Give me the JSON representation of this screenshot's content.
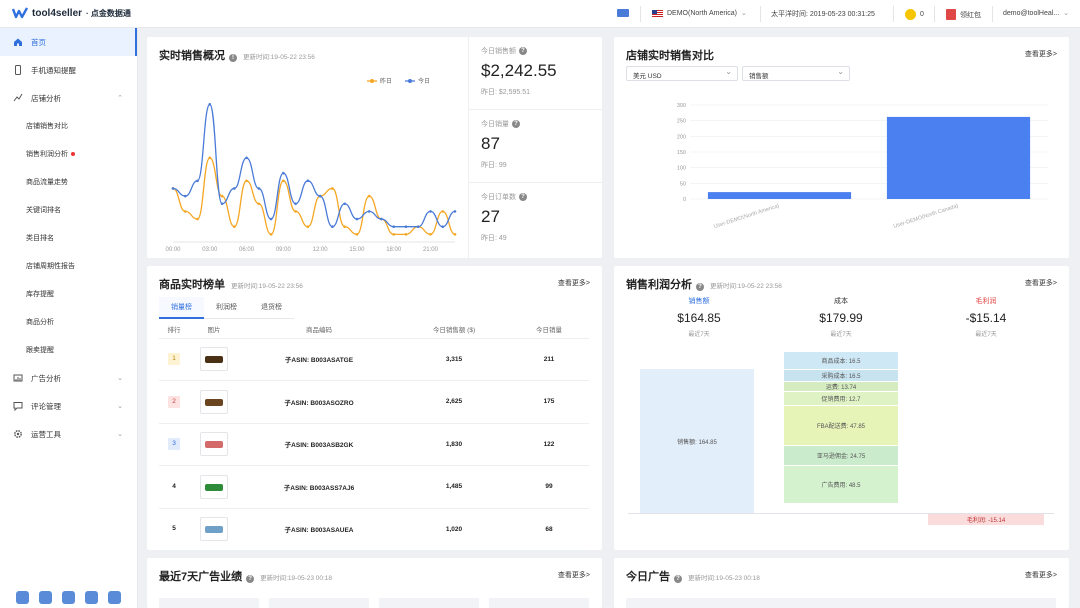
{
  "header": {
    "brand": "tool4seller",
    "brand_sub": "· 点金数据通",
    "store": "DEMO(North America)",
    "time_label": "太平洋时间: 2019-05-23 00:31:25",
    "coins": "0",
    "gift": "领红包",
    "user": "demo@toolHeal..."
  },
  "sidebar": {
    "items": [
      {
        "label": "首页",
        "icon": "home-icon"
      },
      {
        "label": "手机通知提醒",
        "icon": "phone-icon"
      },
      {
        "label": "店铺分析",
        "icon": "chart-icon"
      },
      {
        "label": "店铺销售对比"
      },
      {
        "label": "销售利润分析"
      },
      {
        "label": "商品流量走势"
      },
      {
        "label": "关键词排名"
      },
      {
        "label": "类目排名"
      },
      {
        "label": "店铺周期性报告"
      },
      {
        "label": "库存提醒"
      },
      {
        "label": "商品分析"
      },
      {
        "label": "跟卖提醒"
      },
      {
        "label": "广告分析",
        "icon": "ad-icon"
      },
      {
        "label": "评论管理",
        "icon": "comment-icon"
      },
      {
        "label": "运营工具",
        "icon": "gear-icon"
      }
    ]
  },
  "realtime": {
    "title": "实时销售概况",
    "updated": "更新时间:19-05-22 23:56",
    "legend": {
      "yesterday": "昨日",
      "today": "今日"
    },
    "stats": [
      {
        "label": "今日销售额",
        "value": "$2,242.55",
        "sub": "昨日: $2,595.51"
      },
      {
        "label": "今日销量",
        "value": "87",
        "sub": "昨日: 99"
      },
      {
        "label": "今日订单数",
        "value": "27",
        "sub": "昨日: 49"
      }
    ],
    "chart_data": {
      "type": "line",
      "x": [
        "00:00",
        "01:00",
        "02:00",
        "03:00",
        "04:00",
        "05:00",
        "06:00",
        "07:00",
        "08:00",
        "09:00",
        "10:00",
        "11:00",
        "12:00",
        "13:00",
        "14:00",
        "15:00",
        "16:00",
        "17:00",
        "18:00",
        "19:00",
        "20:00",
        "21:00",
        "22:00",
        "23:00"
      ],
      "x_ticks": [
        "00:00",
        "03:00",
        "06:00",
        "09:00",
        "12:00",
        "15:00",
        "18:00",
        "21:00"
      ],
      "series": [
        {
          "name": "昨日",
          "color": "#f5a623",
          "values": [
            3.5,
            2,
            1.5,
            5.5,
            3,
            1,
            4,
            2.5,
            0.5,
            4,
            2,
            1,
            3,
            3.5,
            1,
            0.5,
            3,
            1.5,
            0.5,
            0.5,
            1,
            0.5,
            2,
            0.5
          ]
        },
        {
          "name": "今日",
          "color": "#4a7bd8",
          "values": [
            3.5,
            3,
            4,
            9,
            2.5,
            3.5,
            5.5,
            3.5,
            1.5,
            4.5,
            2.5,
            4,
            3,
            1,
            2.5,
            1.5,
            2,
            1.5,
            1,
            1,
            1,
            2,
            1,
            2
          ]
        }
      ]
    }
  },
  "store_compare": {
    "title": "店铺实时销售对比",
    "more": "查看更多>",
    "currency": "美元 USD",
    "metric": "销售额",
    "chart_data": {
      "type": "bar",
      "categories": [
        "User-DEMO(North America)",
        "User-DEMO(North Canada)"
      ],
      "values": [
        22,
        262
      ],
      "ylim": [
        0,
        300
      ],
      "yticks": [
        0,
        50,
        100,
        150,
        200,
        250,
        300
      ]
    }
  },
  "ranking": {
    "title": "商品实时榜单",
    "updated": "更新时间:19-05-22 23:56",
    "more": "查看更多>",
    "tabs": [
      "销量榜",
      "利润榜",
      "退货榜"
    ],
    "columns": [
      "排行",
      "图片",
      "商品编码",
      "今日销售额 ($)",
      "今日销量"
    ],
    "rows": [
      {
        "rank": "1",
        "asin": "子ASIN: B003ASATGE",
        "sales": "3,315",
        "units": "211",
        "color": "#5a3a1c"
      },
      {
        "rank": "2",
        "asin": "子ASIN: B003ASOZRO",
        "sales": "2,625",
        "units": "175",
        "color": "#6b4420"
      },
      {
        "rank": "3",
        "asin": "子ASIN: B003ASB2GK",
        "sales": "1,830",
        "units": "122",
        "color": "#d46a6a"
      },
      {
        "rank": "4",
        "asin": "子ASIN: B003ASS7AJ6",
        "sales": "1,485",
        "units": "99",
        "color": "#2e8b3a"
      },
      {
        "rank": "5",
        "asin": "子ASIN: B003ASAUEA",
        "sales": "1,020",
        "units": "68",
        "color": "#6fa0c8"
      }
    ]
  },
  "profit": {
    "title": "销售利润分析",
    "updated": "更新时间:19-05-22 23:56",
    "more": "查看更多>",
    "cols": [
      {
        "label": "销售额",
        "value": "$164.85",
        "sub": "最近7天",
        "color": "#2f6fde"
      },
      {
        "label": "成本",
        "value": "$179.99",
        "sub": "最近7天",
        "color": "#333"
      },
      {
        "label": "毛利润",
        "value": "-$15.14",
        "sub": "最近7天",
        "color": "#e04848"
      }
    ],
    "sales_bar": "销售额: 164.85",
    "segments": [
      {
        "label": "商品成本: 16.5",
        "color": "#cfe8f5"
      },
      {
        "label": "采购成本: 16.5",
        "color": "#c8e3f0"
      },
      {
        "label": "运费: 13.74",
        "color": "#d4ecc0"
      },
      {
        "label": "促销费用: 12.7",
        "color": "#dff2c4"
      },
      {
        "label": "FBA配送费: 47.85",
        "color": "#e6f4b8"
      },
      {
        "label": "亚马逊佣金: 24.75",
        "color": "#cbeccc"
      },
      {
        "label": "广告费用: 48.5",
        "color": "#d5f2cf"
      }
    ],
    "loss": "毛利润: -15.14"
  },
  "ads7": {
    "title": "最近7天广告业绩",
    "updated": "更新时间:19-05-23 00:18",
    "more": "查看更多>"
  },
  "ads_today": {
    "title": "今日广告",
    "updated": "更新时间:19-05-23 00:18",
    "more": "查看更多>"
  }
}
